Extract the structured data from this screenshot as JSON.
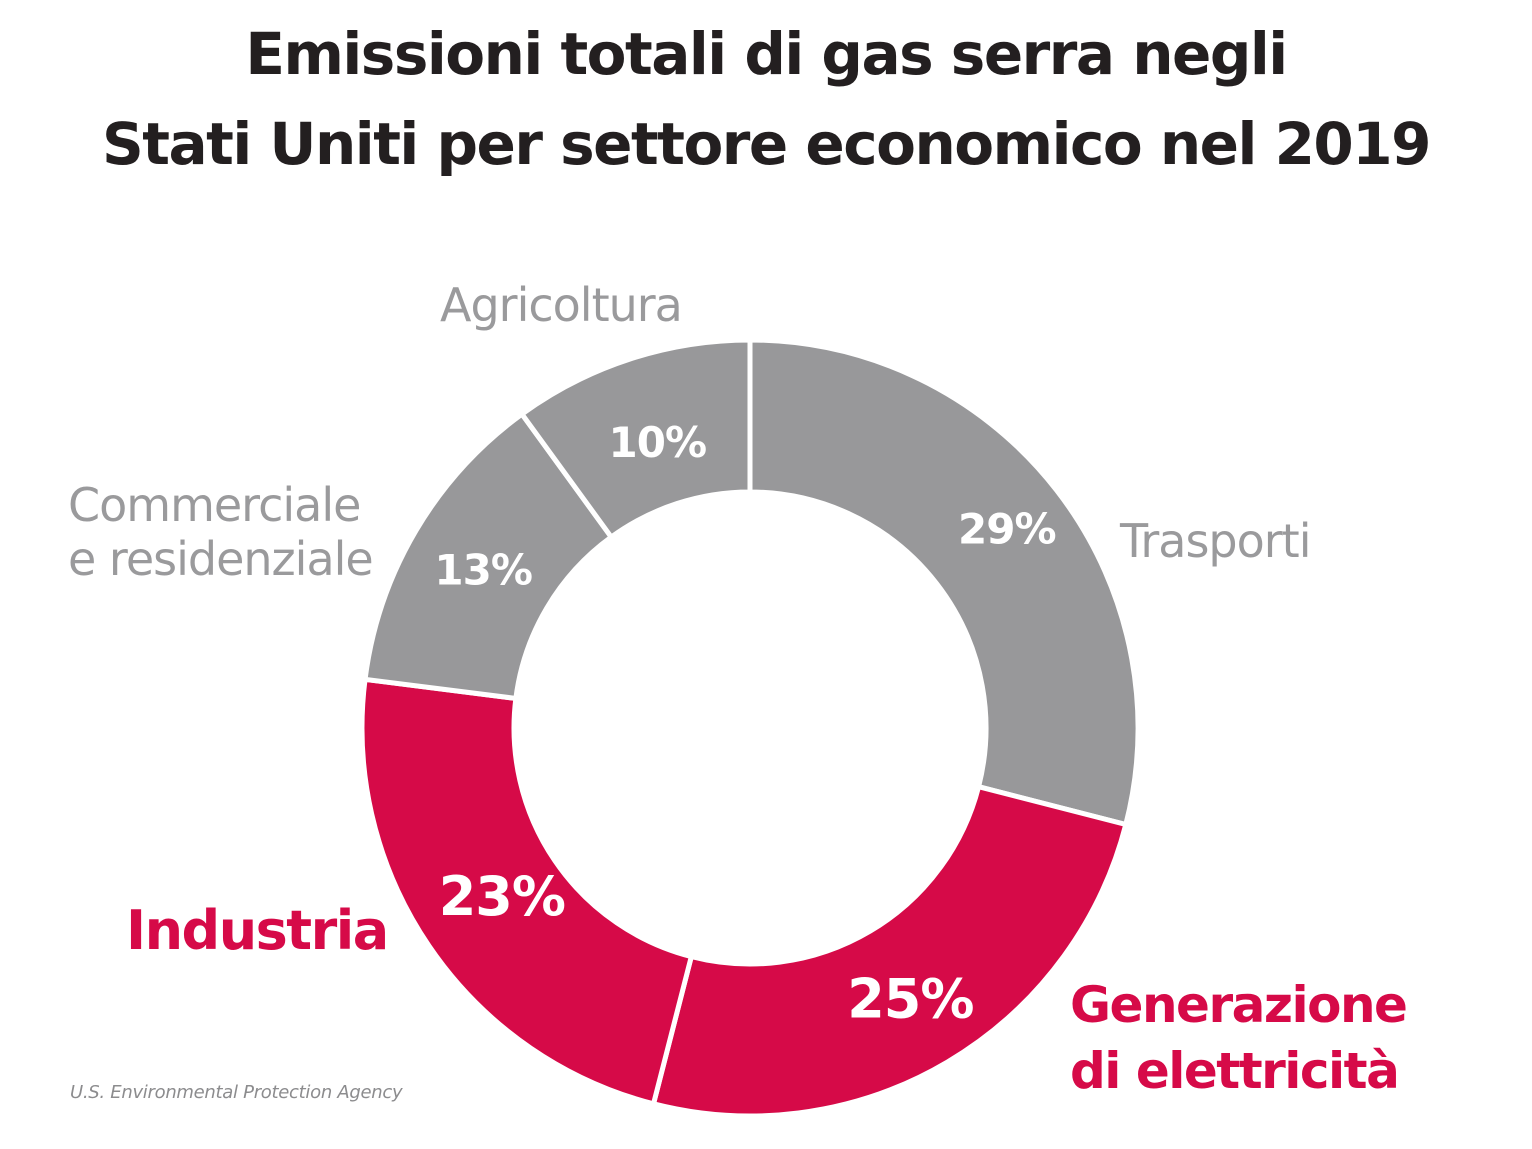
{
  "chart_data": {
    "type": "pie",
    "style": "donut",
    "title_lines": [
      "Emissioni totali di gas serra negli",
      "Stati Uniti per settore economico nel 2019"
    ],
    "unit": "%",
    "slices": [
      {
        "label": [
          "Trasporti"
        ],
        "value": 29,
        "value_label": "29%",
        "color": "#98989a",
        "emphasis": false
      },
      {
        "label": [
          "Generazione",
          "di elettricità"
        ],
        "value": 25,
        "value_label": "25%",
        "color": "#d60a48",
        "emphasis": true
      },
      {
        "label": [
          "Industria"
        ],
        "value": 23,
        "value_label": "23%",
        "color": "#d60a48",
        "emphasis": true
      },
      {
        "label": [
          "Commerciale",
          "e residenziale"
        ],
        "value": 13,
        "value_label": "13%",
        "color": "#98989a",
        "emphasis": false
      },
      {
        "label": [
          "Agricoltura"
        ],
        "value": 10,
        "value_label": "10%",
        "color": "#98989a",
        "emphasis": false
      }
    ],
    "source": "U.S. Environmental Protection Agency"
  },
  "colors": {
    "muted_text": "#9a9a9c",
    "accent": "#d60a48",
    "title": "#231f20",
    "separator": "#ffffff"
  }
}
